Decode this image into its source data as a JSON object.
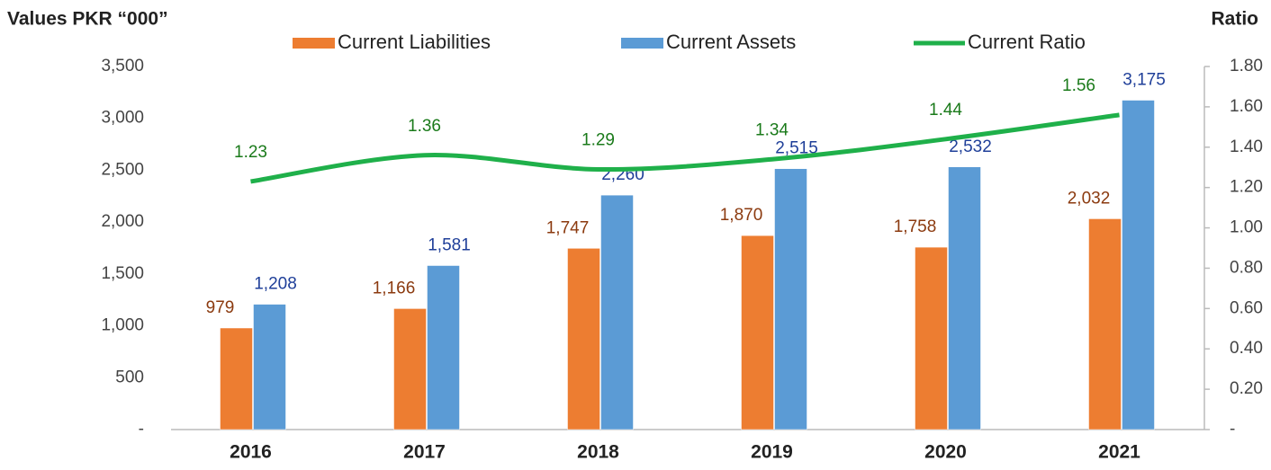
{
  "chart_data": {
    "type": "bar",
    "y_label": "Values PKR “000”",
    "y2_label": "Ratio",
    "categories": [
      "2016",
      "2017",
      "2018",
      "2019",
      "2020",
      "2021"
    ],
    "series": [
      {
        "name": "Current Liabilities",
        "color": "#ed7d31",
        "label_color": "#8b3a0f",
        "type": "bar",
        "values": [
          979,
          1166,
          1747,
          1870,
          1758,
          2032
        ],
        "value_labels": [
          "979",
          "1,166",
          "1,747",
          "1,870",
          "1,758",
          "2,032"
        ]
      },
      {
        "name": "Current Assets",
        "color": "#5b9bd5",
        "label_color": "#1f3f99",
        "type": "bar",
        "values": [
          1208,
          1581,
          2260,
          2515,
          2532,
          3175
        ],
        "value_labels": [
          "1,208",
          "1,581",
          "2,260",
          "2,515",
          "2,532",
          "3,175"
        ]
      },
      {
        "name": "Current Ratio",
        "color": "#1fb04a",
        "label_color": "#1a7a1a",
        "type": "line",
        "axis": "y2",
        "values": [
          1.23,
          1.36,
          1.29,
          1.34,
          1.44,
          1.56
        ]
      }
    ],
    "ylim": [
      0,
      3500
    ],
    "yticks": [
      {
        "value": 0,
        "label": "-"
      },
      500,
      {
        "value": 1000,
        "label": "1,000"
      },
      {
        "value": 1500,
        "label": "1,500"
      },
      {
        "value": 2000,
        "label": "2,000"
      },
      {
        "value": 2500,
        "label": "2,500"
      },
      {
        "value": 3000,
        "label": "3,000"
      },
      {
        "value": 3500,
        "label": "3,500"
      }
    ],
    "y2lim": [
      0,
      1.8
    ],
    "y2ticks": [
      {
        "value": 0,
        "label": "-"
      },
      {
        "value": 0.2,
        "label": "0.20"
      },
      {
        "value": 0.4,
        "label": "0.40"
      },
      {
        "value": 0.6,
        "label": "0.60"
      },
      {
        "value": 0.8,
        "label": "0.80"
      },
      {
        "value": 1,
        "label": "1.00"
      },
      {
        "value": 1.2,
        "label": "1.20"
      },
      {
        "value": 1.4,
        "label": "1.40"
      },
      {
        "value": 1.6,
        "label": "1.60"
      },
      {
        "value": 1.8,
        "label": "1.80"
      }
    ],
    "grid": false,
    "legend": "top"
  }
}
